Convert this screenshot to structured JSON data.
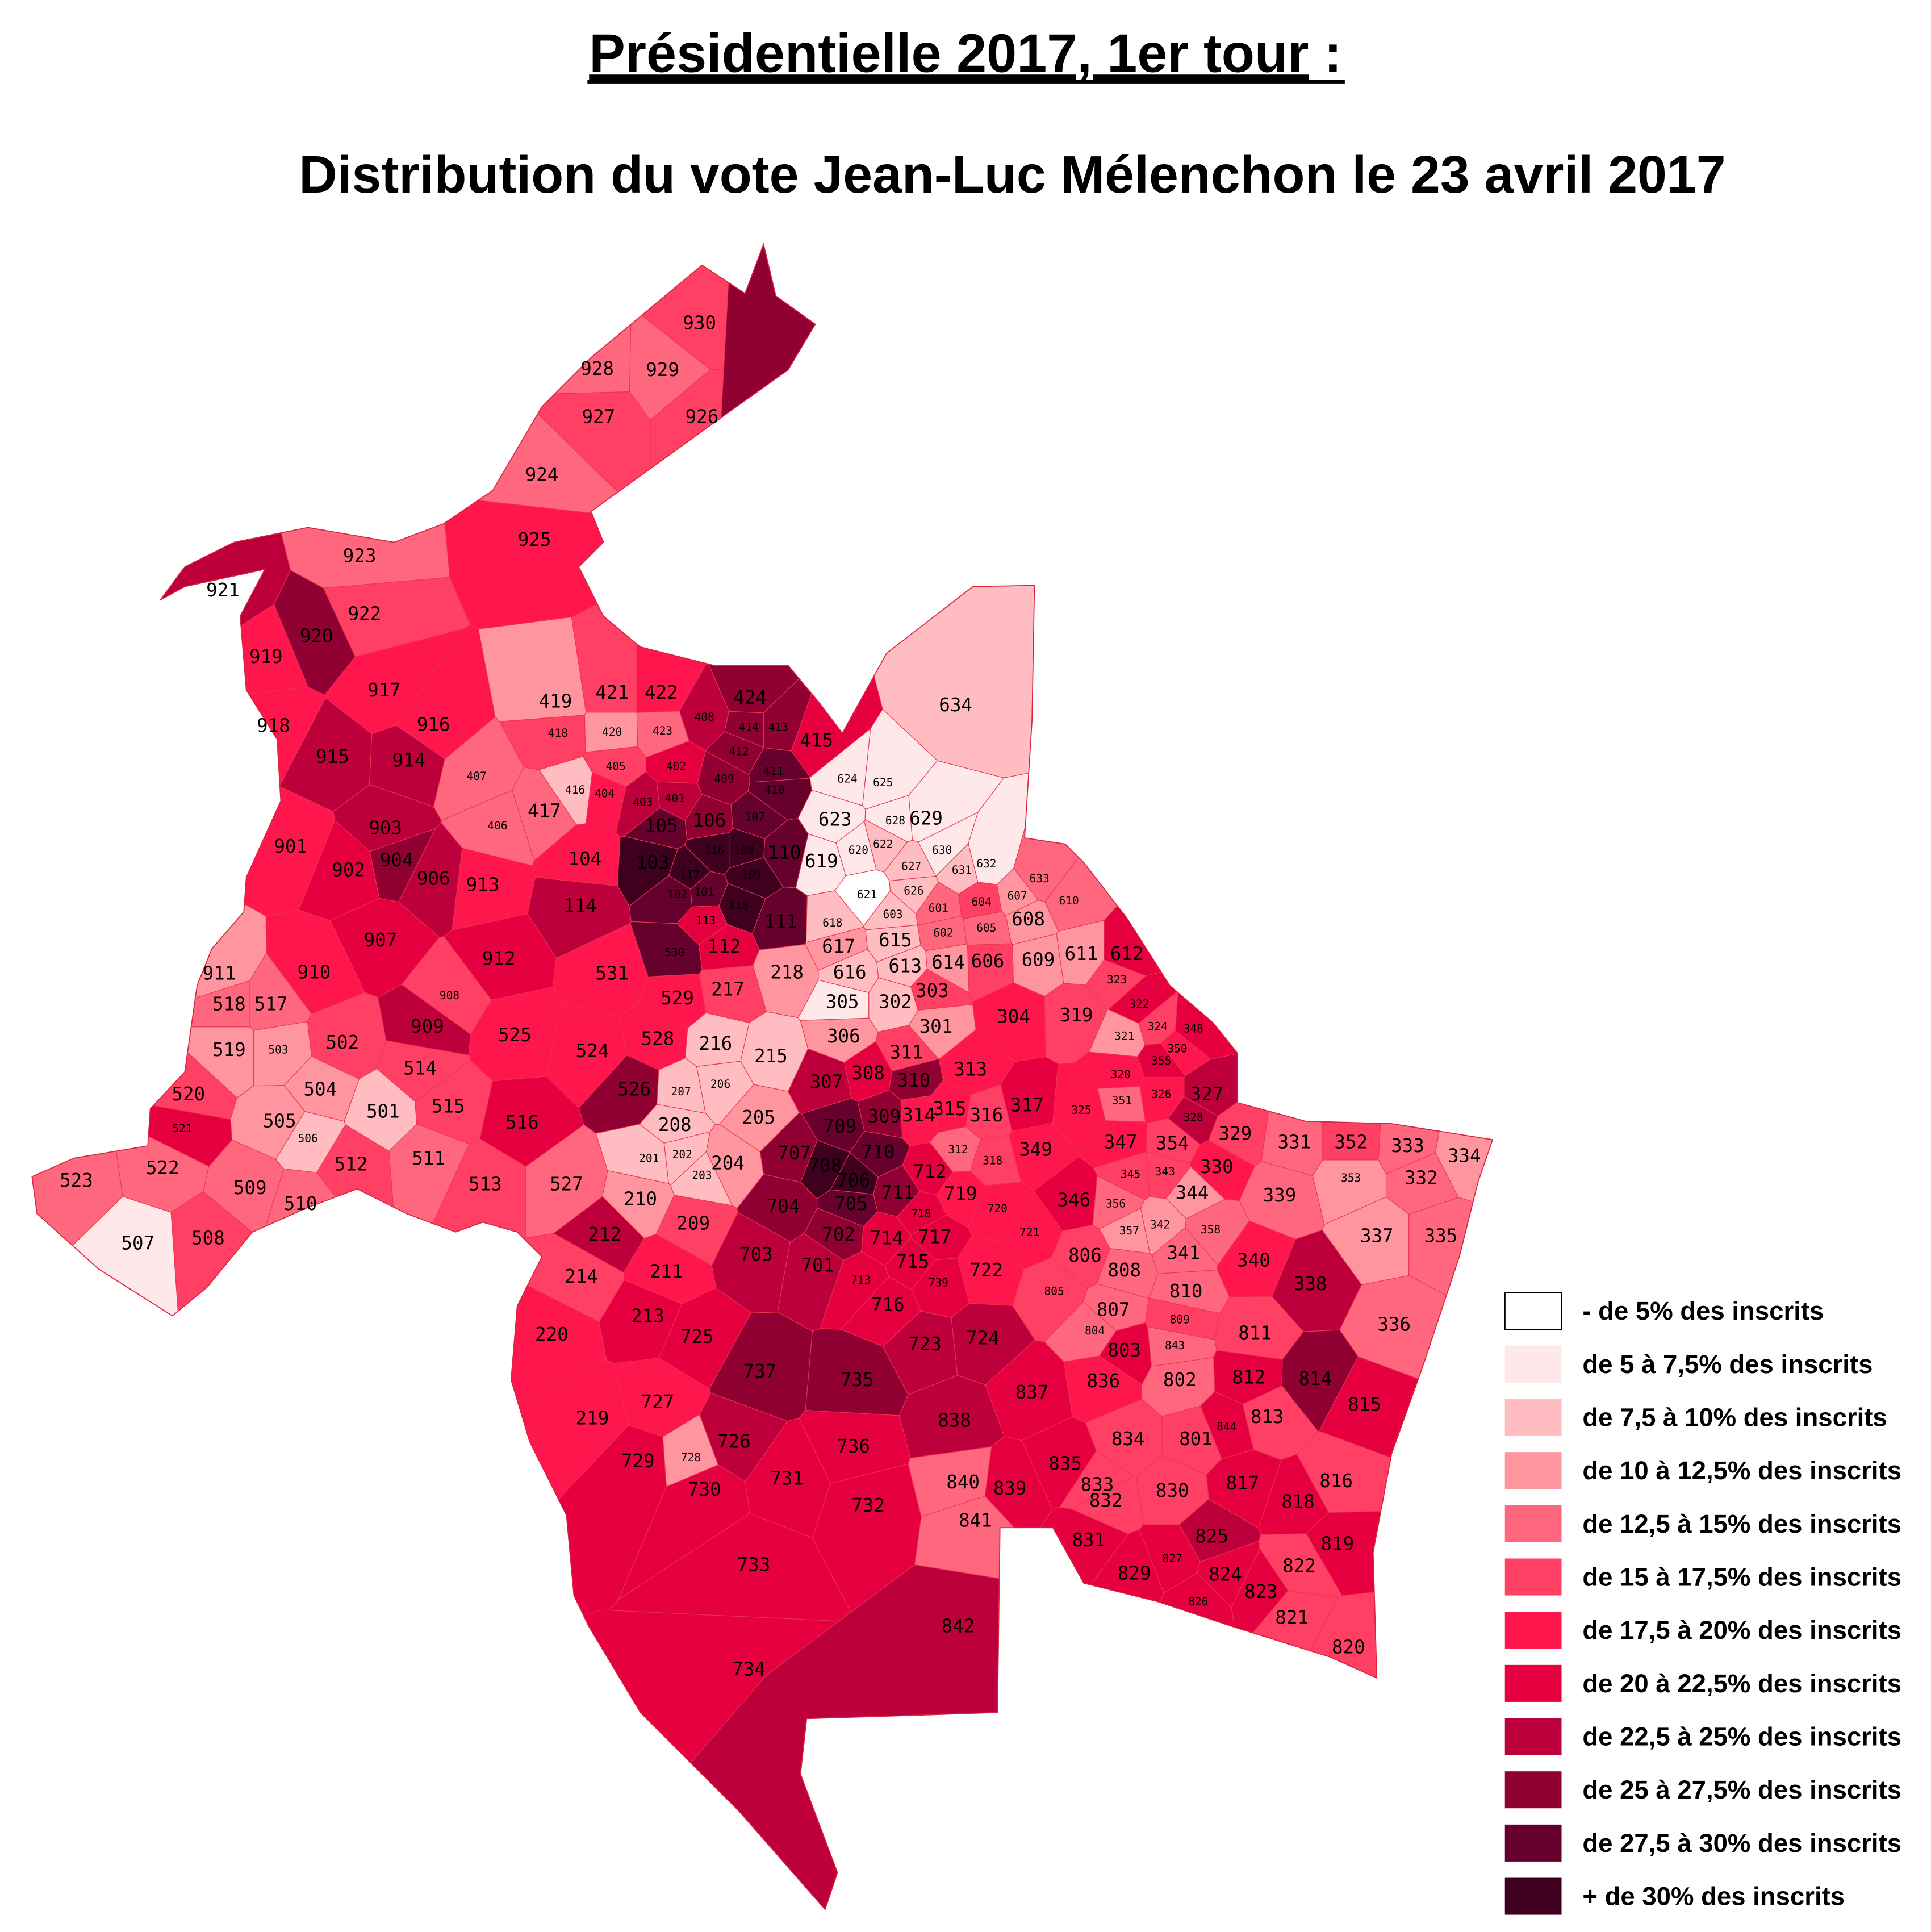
{
  "title": {
    "line1": "Présidentielle 2017, 1er tour",
    "line1_suffix": " :",
    "line2": "Distribution du vote Jean-Luc Mélenchon le 23 avril 2017"
  },
  "legend": [
    {
      "label": "- de 5% des inscrits",
      "color": "#ffffff"
    },
    {
      "label": "de 5 à 7,5% des inscrits",
      "color": "#ffe8e9"
    },
    {
      "label": "de 7,5 à 10% des inscrits",
      "color": "#ffbcc1"
    },
    {
      "label": "de 10 à 12,5% des inscrits",
      "color": "#ff959e"
    },
    {
      "label": "de 12,5 à 15% des inscrits",
      "color": "#ff677f"
    },
    {
      "label": "de 15 à 17,5% des inscrits",
      "color": "#ff3f63"
    },
    {
      "label": "de 17,5 à 20% des inscrits",
      "color": "#ff164c"
    },
    {
      "label": "de 20 à 22,5% des inscrits",
      "color": "#e6003f"
    },
    {
      "label": "de 22,5 à 25% des inscrits",
      "color": "#bd003c"
    },
    {
      "label": "de 25 à 27,5% des inscrits",
      "color": "#910033"
    },
    {
      "label": "de 27,5 à 30% des inscrits",
      "color": "#66002c"
    },
    {
      "label": "+ de 30% des inscrits",
      "color": "#3f001f"
    }
  ],
  "districts": "930:5 928:4 929:4 927:5 926:5 924:4 925:6 923:4 921:8 922:5 920:9 919:6 918:6 917:6 916:6 915:8 914:8 903:8 904:9 901:6 902:7 906:8 913:6 907:7 910:6 911:3 912:7 908:5 909:8 518:4 517:4 519:3 503:3 502:5 514:5 504:3 501:2 515:5 520:5 521:7 505:3 506:2 516:7 511:4 512:5 513:5 522:4 523:4 509:4 510:4 507:1 508:5 525:6 524:6 528:6 526:9 527:4 531:6 529:6 530:10 218:3 217:5 216:2 215:2 207:2 206:2 205:3 208:2 201:2 202:2 203:2 204:3 210:3 209:5 212:8 211:6 214:5 213:7 220:6 219:6 104:6 105:10 106:9 103:11 116:11 117:11 108:11 109:11 110:10 114:8 101:10 102:10 107:10 113:7 115:11 111:10 112:7 419:3 421:5 422:6 424:9 408:8 414:9 413:9 415:7 418:5 420:3 423:4 412:9 411:10 405:5 402:7 407:4 416:2 404:6 403:8 401:8 409:9 410:10 417:4 406:4 634:2 624:1 625:1 623:1 628:1 629:1 619:1 620:1 622:2 627:2 630:1 631:2 632:1 621:0 626:2 633:4 607:3 610:4 601:4 604:5 603:2 618:2 602:4 605:4 608:3 617:3 615:2 612:7 611:3 609:3 606:5 614:3 613:2 616:2 305:1 302:2 303:5 323:5 304:6 319:5 322:7 324:5 348:7 321:3 301:3 306:3 350:6 311:5 355:7 313:6 307:8 308:7 310:9 320:6 327:8 351:4 326:6 317:7 315:6 316:5 325:6 314:6 328:8 309:9 329:5 354:5 347:6 331:4 352:5 333:4 334:3 312:4 318:5 349:6 330:6 343:5 345:5 353:3 332:4 344:3 339:4 346:7 356:4 357:3 342:3 358:4 337:3 335:4 341:4 340:6 338:8 336:4 709:10 707:9 710:10 708:11 706:11 712:7 711:9 704:9 705:10 719:6 720:6 718:7 702:9 714:7 717:7 721:6 703:8 701:8 715:7 722:6 713:7 739:7 716:7 723:8 724:8 725:7 737:9 735:9 727:6 726:8 728:3 729:7 731:7 730:7 736:7 732:7 733:7 734:7 806:5 808:4 805:5 810:4 807:4 809:5 804:4 811:5 843:4 803:7 814:9 812:7 836:6 802:4 837:7 815:7 813:5 844:7 838:8 834:5 801:5 835:7 833:5 816:5 817:7 840:4 839:7 830:5 818:7 832:5 841:4 825:8 831:7 819:7 827:7 829:7 824:7 822:5 823:7 826:7 821:5 820:5 842:8"
}
